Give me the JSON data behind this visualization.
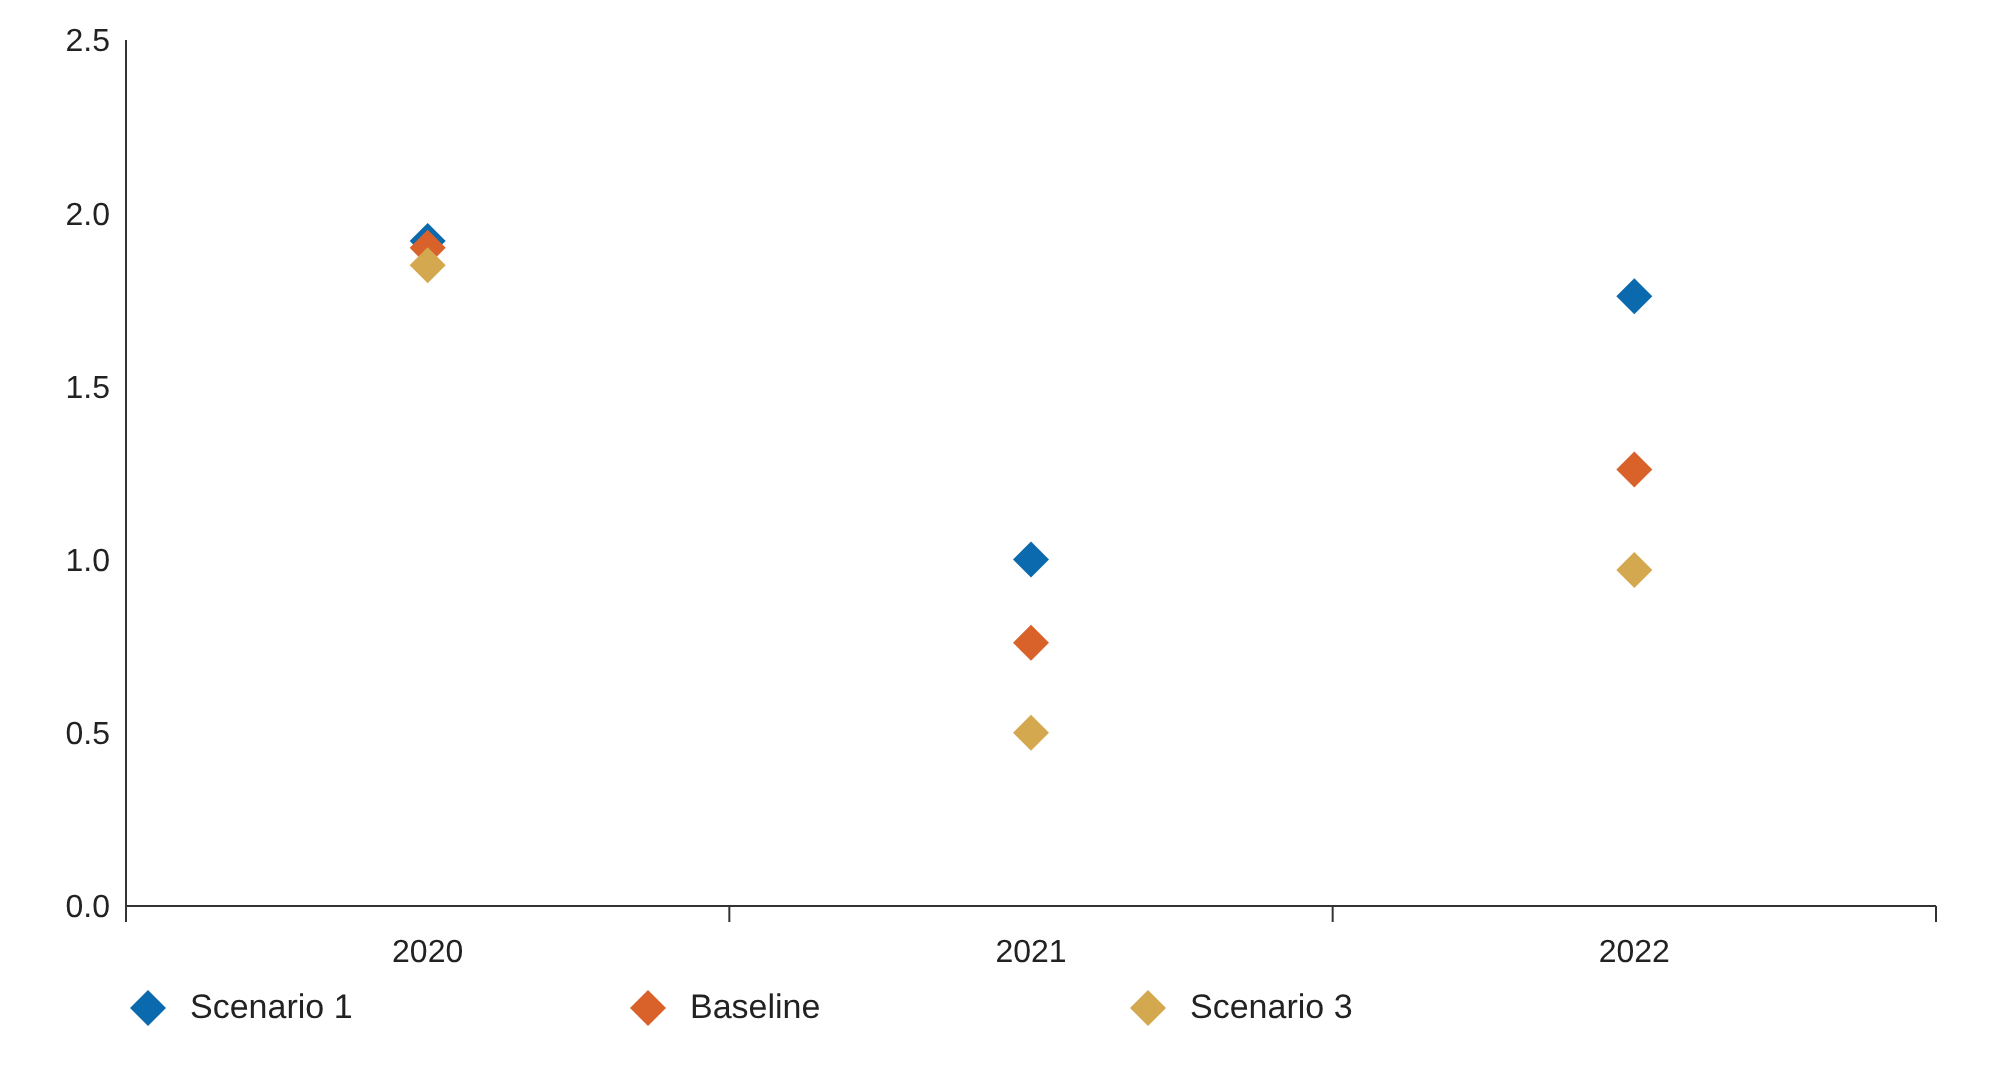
{
  "chart_data": {
    "type": "scatter",
    "categories": [
      "2020",
      "2021",
      "2022"
    ],
    "series": [
      {
        "name": "Scenario 1",
        "color": "#0b6aad",
        "values": [
          1.92,
          1.0,
          1.76
        ]
      },
      {
        "name": "Baseline",
        "color": "#d9622b",
        "values": [
          1.9,
          0.76,
          1.26
        ]
      },
      {
        "name": "Scenario 3",
        "color": "#d4a84f",
        "values": [
          1.85,
          0.5,
          0.97
        ]
      }
    ],
    "ylim": [
      0,
      2.5
    ],
    "yticks": [
      {
        "value": 0,
        "label": "0.0"
      },
      {
        "value": 0.5,
        "label": "0.5"
      },
      {
        "value": 1,
        "label": "1.0"
      },
      {
        "value": 1.5,
        "label": "1.5"
      },
      {
        "value": 2,
        "label": "2.0"
      },
      {
        "value": 2.5,
        "label": "2.5"
      }
    ],
    "grid": false,
    "legend": "bottom left",
    "marker": "diamond"
  }
}
